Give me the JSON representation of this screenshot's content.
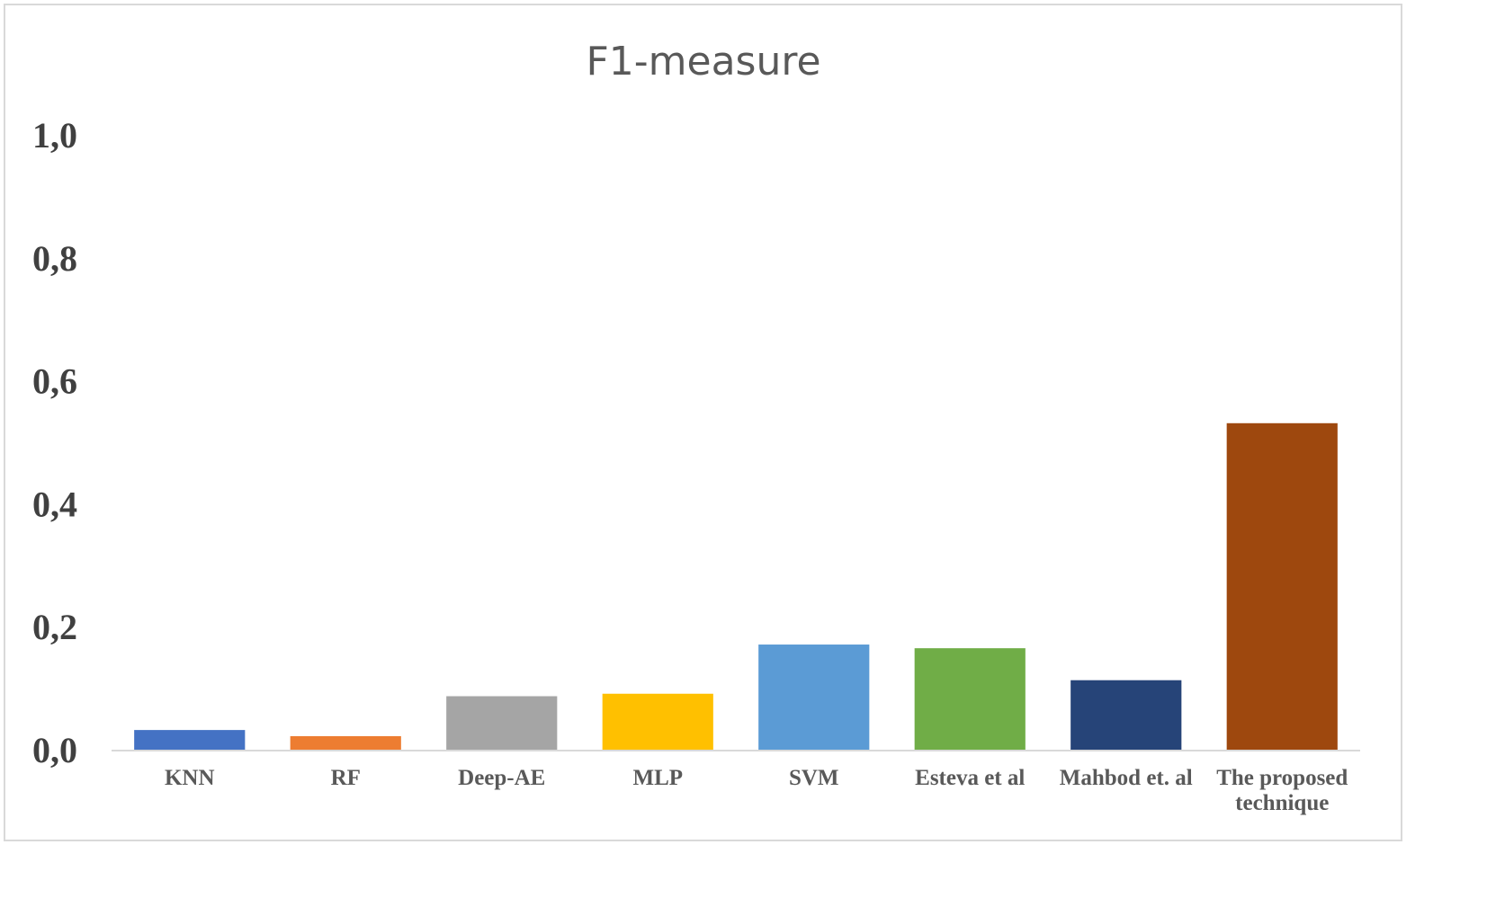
{
  "chart_data": {
    "type": "bar",
    "title": "F1-measure",
    "xlabel": "",
    "ylabel": "",
    "ylim": [
      0,
      1.0
    ],
    "yticks": [
      "0,0",
      "0,2",
      "0,4",
      "0,6",
      "0,8",
      "1,0"
    ],
    "grid": false,
    "legend": "none",
    "categories": [
      "KNN",
      "RF",
      "Deep-AE",
      "MLP",
      "SVM",
      "Esteva et al",
      "Mahbod et. al",
      "The proposed technique"
    ],
    "category_lines": [
      [
        "KNN"
      ],
      [
        "RF"
      ],
      [
        "Deep-AE"
      ],
      [
        "MLP"
      ],
      [
        "SVM"
      ],
      [
        "Esteva et al"
      ],
      [
        "Mahbod et. al"
      ],
      [
        "The proposed",
        "technique"
      ]
    ],
    "values": [
      0.032,
      0.022,
      0.087,
      0.091,
      0.171,
      0.165,
      0.113,
      0.531
    ],
    "colors": [
      "#4472c4",
      "#ed7d31",
      "#a5a5a5",
      "#ffc000",
      "#5b9bd5",
      "#70ad47",
      "#264478",
      "#9e480e"
    ],
    "axis_color": "#d9d9d9"
  }
}
